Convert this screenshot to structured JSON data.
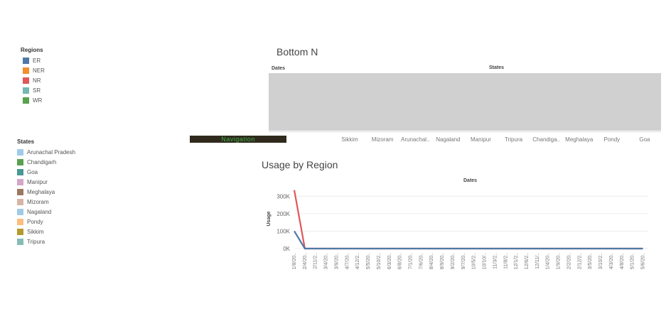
{
  "regions_legend": {
    "title": "Regions",
    "items": [
      {
        "label": "ER",
        "color": "#4e79a7"
      },
      {
        "label": "NER",
        "color": "#f28e2b"
      },
      {
        "label": "NR",
        "color": "#e15759"
      },
      {
        "label": "SR",
        "color": "#76b7b2"
      },
      {
        "label": "WR",
        "color": "#59a14f"
      }
    ]
  },
  "states_legend": {
    "title": "States",
    "items": [
      {
        "label": "Arunachal Pradesh",
        "color": "#a0cbe8"
      },
      {
        "label": "Chandigarh",
        "color": "#59a14f"
      },
      {
        "label": "Goa",
        "color": "#499894"
      },
      {
        "label": "Manipur",
        "color": "#d4a6c8"
      },
      {
        "label": "Meghalaya",
        "color": "#9d7660"
      },
      {
        "label": "Mizoram",
        "color": "#d7b5a6"
      },
      {
        "label": "Nagaland",
        "color": "#a0cbe8"
      },
      {
        "label": "Pondy",
        "color": "#ffbe7d"
      },
      {
        "label": "Sikkim",
        "color": "#b6992d"
      },
      {
        "label": "Tripura",
        "color": "#86bcb6"
      }
    ]
  },
  "navigation_button": {
    "label": "Navigation"
  },
  "bottom_n": {
    "title": "Bottom N",
    "row_header": "Dates",
    "col_header": "States",
    "columns": [
      "Sikkim",
      "Mizoram",
      "Arunachal..",
      "Nagaland",
      "Manipur",
      "Tripura",
      "Chandiga..",
      "Meghalaya",
      "Pondy",
      "Goa"
    ]
  },
  "usage_by_region": {
    "title": "Usage by Region",
    "col_header": "Dates",
    "ylabel": "Usage"
  },
  "chart_data": {
    "type": "line",
    "title": "Usage by Region",
    "xlabel": "Dates",
    "ylabel": "Usage",
    "ylim": [
      0,
      350000
    ],
    "yticks": [
      0,
      100000,
      200000,
      300000
    ],
    "ytick_labels": [
      "0K",
      "100K",
      "200K",
      "300K"
    ],
    "x_tick_labels": [
      "1/8/20..",
      "2/4/20..",
      "2/11/2..",
      "3/4/20..",
      "3/9/20..",
      "4/7/20..",
      "4/12/2..",
      "5/5/20..",
      "5/10/2..",
      "6/3/20..",
      "6/8/20..",
      "7/1/20..",
      "7/6/20..",
      "8/4/20..",
      "8/9/20..",
      "9/2/20..",
      "9/7/20..",
      "10/5/2..",
      "10/10/..",
      "11/3/2..",
      "11/8/2..",
      "12/1/2..",
      "12/6/2..",
      "12/11/..",
      "1/4/20..",
      "1/9/20..",
      "2/2/20..",
      "2/12/2..",
      "3/5/20..",
      "3/10/2..",
      "4/3/20..",
      "4/8/20..",
      "5/1/20..",
      "5/6/20.."
    ],
    "grid": true,
    "series": [
      {
        "name": "NR",
        "color": "#e15759",
        "values": [
          335000,
          0,
          0,
          0,
          0,
          0,
          0,
          0,
          0,
          0,
          0,
          0,
          0,
          0,
          0,
          0,
          0,
          0,
          0,
          0,
          0,
          0,
          0,
          0,
          0,
          0,
          0,
          0,
          0,
          0,
          0,
          0,
          0,
          0
        ]
      },
      {
        "name": "ER",
        "color": "#4e79a7",
        "values": [
          100000,
          0,
          0,
          0,
          0,
          0,
          0,
          0,
          0,
          0,
          0,
          0,
          0,
          0,
          0,
          0,
          0,
          0,
          0,
          0,
          0,
          0,
          0,
          0,
          0,
          0,
          0,
          0,
          0,
          0,
          0,
          0,
          0,
          0
        ]
      }
    ]
  }
}
